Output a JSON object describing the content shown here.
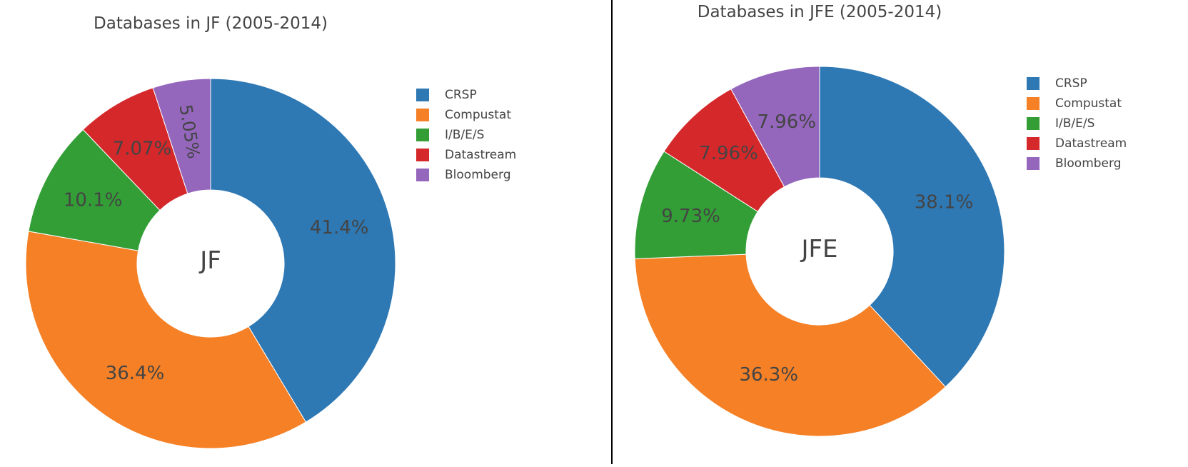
{
  "chart_data": [
    {
      "type": "pie",
      "hole": true,
      "title": "Databases in JF (2005-2014)",
      "center_label": "JF",
      "categories": [
        "CRSP",
        "Compustat",
        "I/B/E/S",
        "Datastream",
        "Bloomberg"
      ],
      "values": [
        41.4,
        36.4,
        10.1,
        7.07,
        5.05
      ],
      "labels": [
        "41.4%",
        "36.4%",
        "10.1%",
        "7.07%",
        "5.05%"
      ],
      "legend": {
        "position": "right",
        "entries": [
          "CRSP",
          "Compustat",
          "I/B/E/S",
          "Datastream",
          "Bloomberg"
        ]
      }
    },
    {
      "type": "pie",
      "hole": true,
      "title": "Databases in JFE (2005-2014)",
      "center_label": "JFE",
      "categories": [
        "CRSP",
        "Compustat",
        "I/B/E/S",
        "Datastream",
        "Bloomberg"
      ],
      "values": [
        38.1,
        36.3,
        9.73,
        7.96,
        7.96
      ],
      "labels": [
        "38.1%",
        "36.3%",
        "9.73%",
        "7.96%",
        "7.96%"
      ],
      "legend": {
        "position": "right",
        "entries": [
          "CRSP",
          "Compustat",
          "I/B/E/S",
          "Datastream",
          "Bloomberg"
        ]
      }
    }
  ],
  "colors": {
    "CRSP": "#2e78b4",
    "Compustat": "#f58026",
    "I/B/E/S": "#339e36",
    "Datastream": "#d5282b",
    "Bloomberg": "#9467bd",
    "text": "#444444",
    "divider": "#000000"
  }
}
